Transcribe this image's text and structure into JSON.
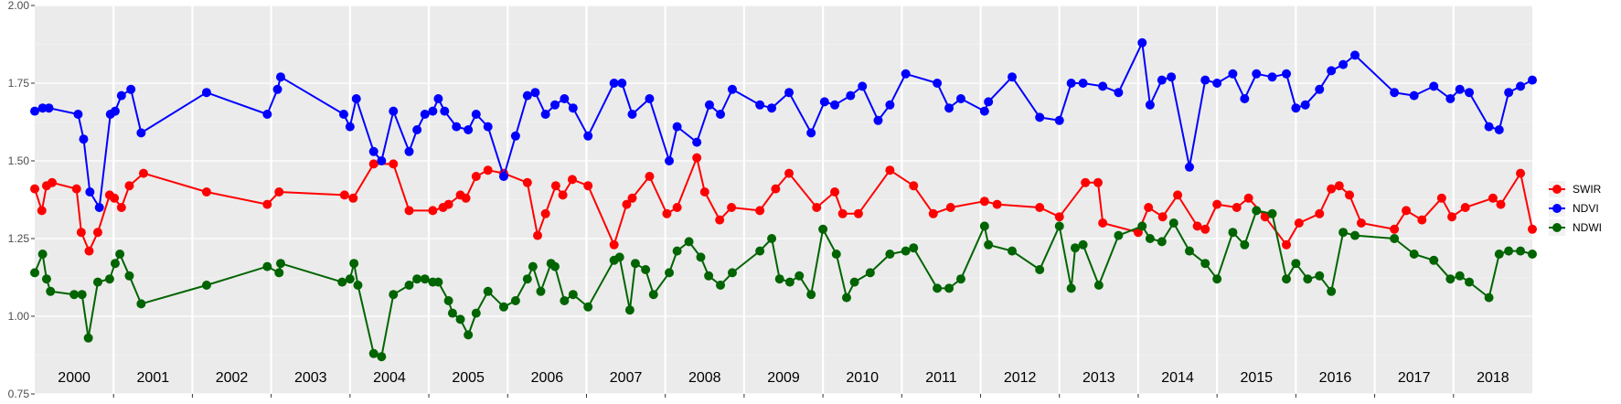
{
  "chart_data": {
    "type": "line",
    "xlabel": "",
    "ylabel": "",
    "ylim": [
      0.75,
      2.0
    ],
    "xlim": [
      2000.0,
      2019.0
    ],
    "y_ticks": [
      "0.75",
      "1.00",
      "1.25",
      "1.50",
      "1.75",
      "2.00"
    ],
    "y_tick_values": [
      0.75,
      1.0,
      1.25,
      1.5,
      1.75,
      2.0
    ],
    "years": [
      "2000",
      "2001",
      "2002",
      "2003",
      "2004",
      "2005",
      "2006",
      "2007",
      "2008",
      "2009",
      "2010",
      "2011",
      "2012",
      "2013",
      "2014",
      "2015",
      "2016",
      "2017",
      "2018"
    ],
    "grid": true,
    "legend_position": "right",
    "colors": {
      "panel": "#ebebeb",
      "grid": "#ffffff",
      "axis_text": "#4d4d4d"
    },
    "series": [
      {
        "name": "SWIR",
        "color": "#ff0000",
        "x": [
          2000.0,
          2000.09,
          2000.15,
          2000.22,
          2000.53,
          2000.59,
          2000.69,
          2000.8,
          2000.95,
          2001.01,
          2001.1,
          2001.2,
          2001.38,
          2002.18,
          2002.95,
          2003.1,
          2003.93,
          2004.04,
          2004.3,
          2004.55,
          2004.75,
          2005.05,
          2005.18,
          2005.25,
          2005.4,
          2005.47,
          2005.6,
          2005.75,
          2005.95,
          2006.25,
          2006.38,
          2006.48,
          2006.61,
          2006.7,
          2006.82,
          2007.02,
          2007.35,
          2007.51,
          2007.58,
          2007.8,
          2008.02,
          2008.15,
          2008.4,
          2008.5,
          2008.69,
          2008.84,
          2009.2,
          2009.4,
          2009.57,
          2009.92,
          2010.15,
          2010.25,
          2010.45,
          2010.85,
          2011.15,
          2011.4,
          2011.62,
          2012.05,
          2012.21,
          2012.75,
          2013.0,
          2013.33,
          2013.49,
          2013.55,
          2014.0,
          2014.13,
          2014.31,
          2014.5,
          2014.75,
          2014.85,
          2015.0,
          2015.25,
          2015.4,
          2015.61,
          2015.88,
          2016.04,
          2016.3,
          2016.45,
          2016.55,
          2016.68,
          2016.83,
          2017.25,
          2017.4,
          2017.6,
          2017.85,
          2017.98,
          2018.15,
          2018.5,
          2018.6,
          2018.85,
          2019.0
        ],
        "y": [
          1.41,
          1.34,
          1.42,
          1.43,
          1.41,
          1.27,
          1.21,
          1.27,
          1.39,
          1.38,
          1.35,
          1.42,
          1.46,
          1.4,
          1.36,
          1.4,
          1.39,
          1.38,
          1.49,
          1.49,
          1.34,
          1.34,
          1.35,
          1.36,
          1.39,
          1.38,
          1.45,
          1.47,
          1.46,
          1.43,
          1.26,
          1.33,
          1.42,
          1.39,
          1.44,
          1.42,
          1.23,
          1.36,
          1.38,
          1.45,
          1.33,
          1.35,
          1.51,
          1.4,
          1.31,
          1.35,
          1.34,
          1.41,
          1.46,
          1.35,
          1.4,
          1.33,
          1.33,
          1.47,
          1.42,
          1.33,
          1.35,
          1.37,
          1.36,
          1.35,
          1.32,
          1.43,
          1.43,
          1.3,
          1.27,
          1.35,
          1.32,
          1.39,
          1.29,
          1.28,
          1.36,
          1.35,
          1.38,
          1.32,
          1.23,
          1.3,
          1.33,
          1.41,
          1.42,
          1.39,
          1.3,
          1.28,
          1.34,
          1.31,
          1.38,
          1.32,
          1.35,
          1.38,
          1.36,
          1.46,
          1.28
        ],
        "markers": 85
      },
      {
        "name": "NDVI",
        "color": "#0000ff",
        "x": [
          2000.0,
          2000.1,
          2000.18,
          2000.55,
          2000.62,
          2000.7,
          2000.82,
          2000.96,
          2001.02,
          2001.1,
          2001.22,
          2001.35,
          2002.18,
          2002.95,
          2003.08,
          2003.12,
          2003.92,
          2004.0,
          2004.08,
          2004.3,
          2004.4,
          2004.55,
          2004.75,
          2004.85,
          2004.95,
          2005.05,
          2005.12,
          2005.2,
          2005.35,
          2005.5,
          2005.6,
          2005.75,
          2005.95,
          2006.1,
          2006.25,
          2006.35,
          2006.48,
          2006.6,
          2006.72,
          2006.83,
          2007.02,
          2007.35,
          2007.45,
          2007.58,
          2007.8,
          2008.05,
          2008.15,
          2008.4,
          2008.56,
          2008.7,
          2008.85,
          2009.2,
          2009.35,
          2009.57,
          2009.85,
          2010.02,
          2010.15,
          2010.35,
          2010.5,
          2010.7,
          2010.85,
          2011.05,
          2011.45,
          2011.6,
          2011.75,
          2012.05,
          2012.1,
          2012.4,
          2012.75,
          2013.0,
          2013.15,
          2013.3,
          2013.55,
          2013.75,
          2014.05,
          2014.15,
          2014.3,
          2014.42,
          2014.65,
          2014.85,
          2015.0,
          2015.2,
          2015.35,
          2015.5,
          2015.7,
          2015.88,
          2016.0,
          2016.12,
          2016.3,
          2016.45,
          2016.6,
          2016.75,
          2017.25,
          2017.5,
          2017.75,
          2017.96,
          2018.08,
          2018.2,
          2018.45,
          2018.58,
          2018.7,
          2018.85,
          2019.0
        ],
        "y": [
          1.66,
          1.67,
          1.67,
          1.65,
          1.57,
          1.4,
          1.35,
          1.65,
          1.66,
          1.71,
          1.73,
          1.59,
          1.72,
          1.65,
          1.73,
          1.77,
          1.65,
          1.61,
          1.7,
          1.53,
          1.5,
          1.66,
          1.53,
          1.6,
          1.65,
          1.66,
          1.7,
          1.66,
          1.61,
          1.6,
          1.65,
          1.61,
          1.45,
          1.58,
          1.71,
          1.72,
          1.65,
          1.68,
          1.7,
          1.67,
          1.58,
          1.75,
          1.75,
          1.65,
          1.7,
          1.5,
          1.61,
          1.56,
          1.68,
          1.65,
          1.73,
          1.68,
          1.67,
          1.72,
          1.59,
          1.69,
          1.68,
          1.71,
          1.74,
          1.63,
          1.68,
          1.78,
          1.75,
          1.67,
          1.7,
          1.66,
          1.69,
          1.77,
          1.64,
          1.63,
          1.75,
          1.75,
          1.74,
          1.72,
          1.88,
          1.68,
          1.76,
          1.77,
          1.48,
          1.76,
          1.75,
          1.78,
          1.7,
          1.78,
          1.77,
          1.78,
          1.67,
          1.68,
          1.73,
          1.79,
          1.81,
          1.84,
          1.72,
          1.71,
          1.74,
          1.7,
          1.73,
          1.72,
          1.61,
          1.6,
          1.72,
          1.74,
          1.76
        ],
        "markers": 101
      },
      {
        "name": "NDWI",
        "color": "#006400",
        "x": [
          2000.0,
          2000.1,
          2000.15,
          2000.2,
          2000.5,
          2000.6,
          2000.68,
          2000.8,
          2000.95,
          2001.02,
          2001.08,
          2001.2,
          2001.35,
          2002.18,
          2002.95,
          2003.1,
          2003.12,
          2003.9,
          2004.0,
          2004.05,
          2004.1,
          2004.3,
          2004.4,
          2004.55,
          2004.75,
          2004.85,
          2004.95,
          2005.05,
          2005.12,
          2005.25,
          2005.3,
          2005.4,
          2005.5,
          2005.6,
          2005.75,
          2005.95,
          2006.1,
          2006.25,
          2006.32,
          2006.42,
          2006.55,
          2006.6,
          2006.72,
          2006.83,
          2007.02,
          2007.35,
          2007.42,
          2007.55,
          2007.62,
          2007.75,
          2007.85,
          2008.05,
          2008.15,
          2008.3,
          2008.45,
          2008.55,
          2008.7,
          2008.85,
          2009.2,
          2009.35,
          2009.45,
          2009.58,
          2009.7,
          2009.85,
          2010.0,
          2010.17,
          2010.3,
          2010.4,
          2010.6,
          2010.85,
          2011.05,
          2011.15,
          2011.45,
          2011.6,
          2011.75,
          2012.05,
          2012.1,
          2012.4,
          2012.75,
          2013.0,
          2013.15,
          2013.2,
          2013.3,
          2013.5,
          2013.75,
          2014.05,
          2014.15,
          2014.3,
          2014.45,
          2014.65,
          2014.85,
          2015.0,
          2015.2,
          2015.35,
          2015.5,
          2015.7,
          2015.88,
          2016.0,
          2016.15,
          2016.3,
          2016.45,
          2016.6,
          2016.75,
          2017.25,
          2017.5,
          2017.75,
          2017.96,
          2018.08,
          2018.2,
          2018.45,
          2018.58,
          2018.7,
          2018.85,
          2019.0
        ],
        "y": [
          1.14,
          1.2,
          1.12,
          1.08,
          1.07,
          1.07,
          0.93,
          1.11,
          1.12,
          1.17,
          1.2,
          1.13,
          1.04,
          1.1,
          1.16,
          1.14,
          1.17,
          1.11,
          1.12,
          1.17,
          1.1,
          0.88,
          0.87,
          1.07,
          1.1,
          1.12,
          1.12,
          1.11,
          1.11,
          1.05,
          1.01,
          0.99,
          0.94,
          1.01,
          1.08,
          1.03,
          1.05,
          1.12,
          1.16,
          1.08,
          1.17,
          1.16,
          1.05,
          1.07,
          1.03,
          1.18,
          1.19,
          1.02,
          1.17,
          1.15,
          1.07,
          1.14,
          1.21,
          1.24,
          1.19,
          1.13,
          1.1,
          1.14,
          1.21,
          1.25,
          1.12,
          1.11,
          1.13,
          1.07,
          1.28,
          1.2,
          1.06,
          1.11,
          1.14,
          1.2,
          1.21,
          1.22,
          1.09,
          1.09,
          1.12,
          1.29,
          1.23,
          1.21,
          1.15,
          1.29,
          1.09,
          1.22,
          1.23,
          1.1,
          1.26,
          1.29,
          1.25,
          1.24,
          1.3,
          1.21,
          1.17,
          1.12,
          1.27,
          1.23,
          1.34,
          1.33,
          1.12,
          1.17,
          1.12,
          1.13,
          1.08,
          1.27,
          1.26,
          1.25,
          1.2,
          1.18,
          1.12,
          1.13,
          1.11,
          1.06,
          1.2,
          1.21,
          1.21,
          1.2
        ]
      }
    ],
    "legend": [
      {
        "name": "SWIR",
        "color": "#ff0000"
      },
      {
        "name": "NDVI",
        "color": "#0000ff"
      },
      {
        "name": "NDWI",
        "color": "#006400"
      }
    ]
  }
}
